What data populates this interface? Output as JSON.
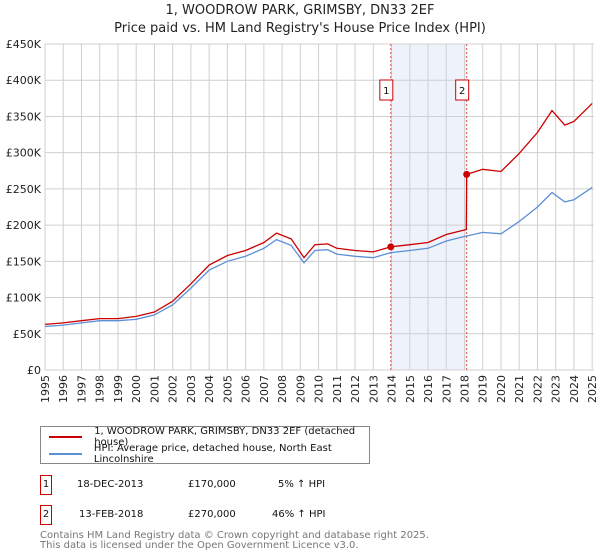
{
  "chart_data": {
    "type": "line",
    "title": "1, WOODROW PARK, GRIMSBY, DN33 2EF",
    "subtitle": "Price paid vs. HM Land Registry's House Price Index (HPI)",
    "xlabel": "",
    "ylabel": "",
    "xlim": [
      1995,
      2025.1
    ],
    "ylim": [
      0,
      450000
    ],
    "grid": true,
    "y_ticks": [
      0,
      50000,
      100000,
      150000,
      200000,
      250000,
      300000,
      350000,
      400000,
      450000
    ],
    "y_tick_labels": [
      "£0",
      "£50K",
      "£100K",
      "£150K",
      "£200K",
      "£250K",
      "£300K",
      "£350K",
      "£400K",
      "£450K"
    ],
    "x_ticks": [
      "1995",
      "1996",
      "1997",
      "1998",
      "1999",
      "2000",
      "2001",
      "2002",
      "2003",
      "2004",
      "2005",
      "2006",
      "2007",
      "2008",
      "2009",
      "2010",
      "2011",
      "2012",
      "2013",
      "2014",
      "2015",
      "2016",
      "2017",
      "2018",
      "2019",
      "2020",
      "2021",
      "2022",
      "2023",
      "2024",
      "2025"
    ],
    "x": [
      1995,
      1996,
      1997,
      1998,
      1999,
      2000,
      2001,
      2002,
      2003,
      2004,
      2005,
      2006,
      2007,
      2007.7,
      2008.5,
      2009.2,
      2009.8,
      2010.5,
      2011,
      2012,
      2013,
      2013.96,
      2015,
      2016,
      2017,
      2018.1,
      2018.12,
      2019,
      2020,
      2021,
      2022,
      2022.8,
      2023.5,
      2024,
      2025
    ],
    "series": [
      {
        "name": "1, WOODROW PARK, GRIMSBY, DN33 2EF (detached house)",
        "color": "#cc0000",
        "values": [
          63000,
          65000,
          68000,
          71000,
          71000,
          74000,
          80000,
          95000,
          119000,
          145000,
          158000,
          165000,
          176000,
          189000,
          181000,
          155000,
          173000,
          174000,
          168000,
          165000,
          163000,
          170000,
          173000,
          176000,
          187000,
          194000,
          270000,
          277000,
          274000,
          299000,
          328000,
          358000,
          338000,
          343000,
          368000
        ]
      },
      {
        "name": "HPI: Average price, detached house, North East Lincolnshire",
        "color": "#5b8fd6",
        "values": [
          60000,
          62000,
          65000,
          68000,
          68000,
          70000,
          76000,
          90000,
          113000,
          138000,
          150000,
          157000,
          168000,
          180000,
          172000,
          148000,
          165000,
          166000,
          160000,
          157000,
          155000,
          162000,
          165000,
          168000,
          178000,
          185000,
          185000,
          190000,
          188000,
          205000,
          225000,
          245000,
          232000,
          235000,
          252000
        ]
      }
    ],
    "sales": [
      {
        "label": "1",
        "date": "18-DEC-2013",
        "year": 2013.96,
        "price": 170000,
        "price_text": "£170,000",
        "hpi": "5% ↑ HPI"
      },
      {
        "label": "2",
        "date": "13-FEB-2018",
        "year": 2018.12,
        "price": 270000,
        "price_text": "£270,000",
        "hpi": "46% ↑ HPI"
      }
    ],
    "legend_placement": "below"
  },
  "footer": {
    "line1": "Contains HM Land Registry data © Crown copyright and database right 2025.",
    "line2": "This data is licensed under the Open Government Licence v3.0."
  }
}
